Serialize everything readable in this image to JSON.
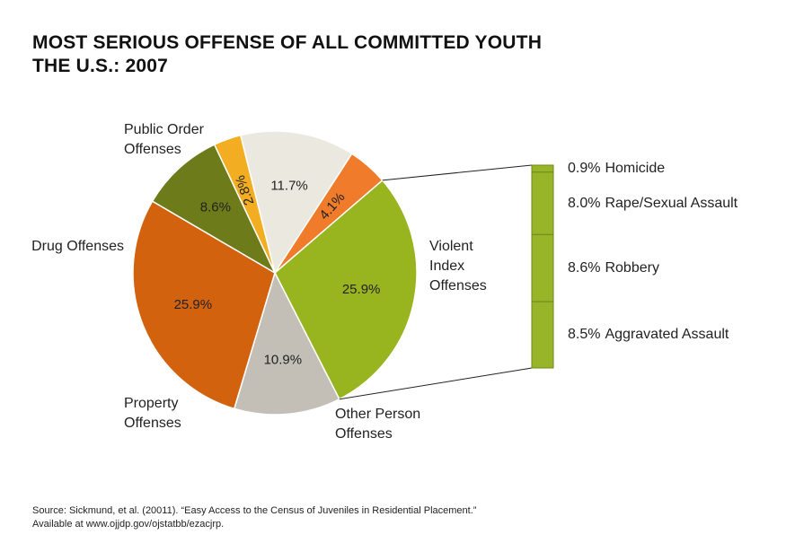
{
  "chart_data": {
    "type": "pie",
    "title": "MOST SERIOUS OFFENSE OF ALL COMMITTED YOUTH",
    "subtitle": "THE U.S.: 2007",
    "categories": [
      null,
      null,
      "Violent Index Offenses",
      "Other Person Offenses",
      "Property Offenses",
      "Drug Offenses",
      "Public Order Offenses"
    ],
    "values": [
      11.7,
      4.1,
      25.9,
      10.9,
      25.9,
      8.6,
      2.8
    ],
    "value_labels": [
      "11.7%",
      "4.1%",
      "25.9%",
      "10.9%",
      "25.9%",
      "8.6%",
      "2.8%"
    ],
    "colors": [
      "#ebe8df",
      "#ef7b2b",
      "#98b51f",
      "#c3bfb7",
      "#d3620f",
      "#6d7b1b",
      "#f3ad23"
    ],
    "breakdown": {
      "categories": [
        "Homicide",
        "Rape/Sexual Assault",
        "Robbery",
        "Aggravated Assault"
      ],
      "values": [
        0.9,
        8.0,
        8.6,
        8.5
      ],
      "value_labels": [
        "0.9%",
        "8.0%",
        "8.6%",
        "8.5%"
      ],
      "color": "#98b52a"
    },
    "source": [
      "Source: Sickmund, et al. (20011). “Easy Access to the Census of Juveniles in Residential Placement.”",
      "Available at www.ojjdp.gov/ojstatbb/ezacjrp."
    ]
  }
}
